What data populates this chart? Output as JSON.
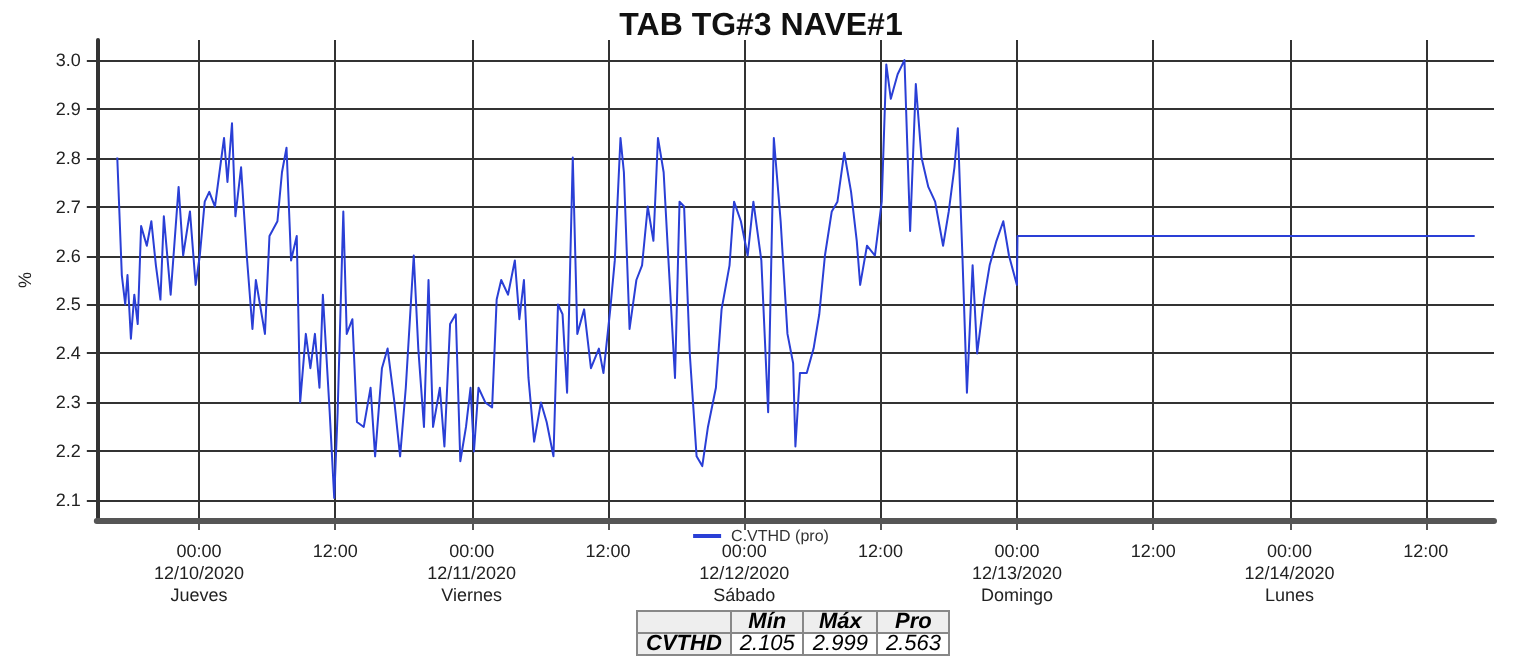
{
  "chart_data": {
    "type": "line",
    "title": "TAB TG#3 NAVE#1",
    "ylabel": "%",
    "x": [
      "2020-12-09T16:48",
      "2020-12-09T17:12",
      "2020-12-09T17:30",
      "2020-12-09T17:42",
      "2020-12-09T18:00",
      "2020-12-09T18:18",
      "2020-12-09T18:36",
      "2020-12-09T18:54",
      "2020-12-09T19:24",
      "2020-12-09T19:48",
      "2020-12-09T20:12",
      "2020-12-09T20:36",
      "2020-12-09T20:54",
      "2020-12-09T21:30",
      "2020-12-09T22:12",
      "2020-12-09T22:36",
      "2020-12-09T23:12",
      "2020-12-09T23:42",
      "2020-12-10T00:04",
      "2020-12-10T00:30",
      "2020-12-10T00:54",
      "2020-12-10T01:24",
      "2020-12-10T01:48",
      "2020-12-10T02:12",
      "2020-12-10T02:30",
      "2020-12-10T02:54",
      "2020-12-10T03:12",
      "2020-12-10T03:42",
      "2020-12-10T04:12",
      "2020-12-10T04:42",
      "2020-12-10T05:00",
      "2020-12-10T05:48",
      "2020-12-10T06:12",
      "2020-12-10T06:54",
      "2020-12-10T07:18",
      "2020-12-10T07:42",
      "2020-12-10T08:06",
      "2020-12-10T08:36",
      "2020-12-10T08:54",
      "2020-12-10T09:24",
      "2020-12-10T09:48",
      "2020-12-10T10:12",
      "2020-12-10T10:36",
      "2020-12-10T10:54",
      "2020-12-10T11:30",
      "2020-12-10T11:54",
      "2020-12-10T12:12",
      "2020-12-10T12:42",
      "2020-12-10T13:00",
      "2020-12-10T13:30",
      "2020-12-10T13:54",
      "2020-12-10T14:30",
      "2020-12-10T15:06",
      "2020-12-10T15:30",
      "2020-12-10T16:06",
      "2020-12-10T16:36",
      "2020-12-10T17:12",
      "2020-12-10T17:42",
      "2020-12-10T18:12",
      "2020-12-10T18:54",
      "2020-12-10T19:18",
      "2020-12-10T19:48",
      "2020-12-10T20:12",
      "2020-12-10T20:36",
      "2020-12-10T21:12",
      "2020-12-10T21:36",
      "2020-12-10T22:06",
      "2020-12-10T22:36",
      "2020-12-10T23:00",
      "2020-12-10T23:30",
      "2020-12-10T23:54",
      "2020-12-11T00:12",
      "2020-12-11T00:36",
      "2020-12-11T01:12",
      "2020-12-11T01:48",
      "2020-12-11T02:12",
      "2020-12-11T02:36",
      "2020-12-11T03:12",
      "2020-12-11T03:48",
      "2020-12-11T04:12",
      "2020-12-11T04:36",
      "2020-12-11T05:00",
      "2020-12-11T05:30",
      "2020-12-11T06:06",
      "2020-12-11T06:36",
      "2020-12-11T07:12",
      "2020-12-11T07:36",
      "2020-12-11T08:00",
      "2020-12-11T08:24",
      "2020-12-11T08:54",
      "2020-12-11T09:18",
      "2020-12-11T09:54",
      "2020-12-11T10:30",
      "2020-12-11T11:12",
      "2020-12-11T11:36",
      "2020-12-11T12:12",
      "2020-12-11T12:36",
      "2020-12-11T13:06",
      "2020-12-11T13:24",
      "2020-12-11T13:54",
      "2020-12-11T14:30",
      "2020-12-11T15:00",
      "2020-12-11T15:30",
      "2020-12-11T16:00",
      "2020-12-11T16:24",
      "2020-12-11T16:54",
      "2020-12-11T17:18",
      "2020-12-11T17:54",
      "2020-12-11T18:18",
      "2020-12-11T18:42",
      "2020-12-11T19:12",
      "2020-12-11T19:48",
      "2020-12-11T20:18",
      "2020-12-11T20:48",
      "2020-12-11T21:30",
      "2020-12-11T22:00",
      "2020-12-11T22:42",
      "2020-12-11T23:06",
      "2020-12-11T23:42",
      "2020-12-12T00:18",
      "2020-12-12T00:48",
      "2020-12-12T01:30",
      "2020-12-12T02:06",
      "2020-12-12T02:36",
      "2020-12-12T03:12",
      "2020-12-12T03:48",
      "2020-12-12T04:18",
      "2020-12-12T04:30",
      "2020-12-12T04:54",
      "2020-12-12T05:30",
      "2020-12-12T06:06",
      "2020-12-12T06:36",
      "2020-12-12T07:06",
      "2020-12-12T07:42",
      "2020-12-12T08:12",
      "2020-12-12T08:48",
      "2020-12-12T09:24",
      "2020-12-12T09:54",
      "2020-12-12T10:12",
      "2020-12-12T10:48",
      "2020-12-12T11:30",
      "2020-12-12T12:06",
      "2020-12-12T12:30",
      "2020-12-12T12:54",
      "2020-12-12T13:30",
      "2020-12-12T14:06",
      "2020-12-12T14:36",
      "2020-12-12T15:06",
      "2020-12-12T15:36",
      "2020-12-12T16:12",
      "2020-12-12T16:48",
      "2020-12-12T17:30",
      "2020-12-12T18:00",
      "2020-12-12T18:30",
      "2020-12-12T18:48",
      "2020-12-12T19:12",
      "2020-12-12T19:36",
      "2020-12-12T20:06",
      "2020-12-12T20:30",
      "2020-12-12T21:06",
      "2020-12-12T21:36",
      "2020-12-12T22:12",
      "2020-12-12T22:48",
      "2020-12-12T23:18",
      "2020-12-13T00:00",
      "2020-12-13T00:03",
      "2020-12-14T16:18"
    ],
    "series": [
      {
        "name": "C.VTHD (pro)",
        "color": "#2a3fd6",
        "values": [
          2.8,
          2.56,
          2.5,
          2.56,
          2.43,
          2.52,
          2.46,
          2.66,
          2.62,
          2.67,
          2.58,
          2.51,
          2.68,
          2.52,
          2.74,
          2.6,
          2.69,
          2.54,
          2.6,
          2.71,
          2.73,
          2.7,
          2.77,
          2.84,
          2.75,
          2.87,
          2.68,
          2.78,
          2.6,
          2.45,
          2.55,
          2.44,
          2.64,
          2.67,
          2.77,
          2.82,
          2.59,
          2.64,
          2.3,
          2.44,
          2.37,
          2.44,
          2.33,
          2.52,
          2.28,
          2.105,
          2.28,
          2.69,
          2.44,
          2.47,
          2.26,
          2.25,
          2.33,
          2.19,
          2.37,
          2.41,
          2.3,
          2.19,
          2.33,
          2.6,
          2.41,
          2.25,
          2.55,
          2.25,
          2.33,
          2.21,
          2.46,
          2.48,
          2.18,
          2.25,
          2.33,
          2.2,
          2.33,
          2.3,
          2.29,
          2.51,
          2.55,
          2.52,
          2.59,
          2.47,
          2.55,
          2.35,
          2.22,
          2.3,
          2.26,
          2.19,
          2.5,
          2.48,
          2.32,
          2.8,
          2.44,
          2.49,
          2.37,
          2.41,
          2.36,
          2.49,
          2.59,
          2.84,
          2.77,
          2.45,
          2.55,
          2.58,
          2.7,
          2.63,
          2.84,
          2.77,
          2.6,
          2.35,
          2.71,
          2.7,
          2.4,
          2.19,
          2.17,
          2.25,
          2.33,
          2.49,
          2.58,
          2.71,
          2.67,
          2.6,
          2.71,
          2.59,
          2.28,
          2.84,
          2.67,
          2.44,
          2.38,
          2.21,
          2.36,
          2.36,
          2.41,
          2.48,
          2.6,
          2.69,
          2.71,
          2.81,
          2.73,
          2.63,
          2.54,
          2.62,
          2.6,
          2.71,
          2.99,
          2.92,
          2.97,
          2.999,
          2.65,
          2.95,
          2.8,
          2.74,
          2.71,
          2.62,
          2.69,
          2.78,
          2.86,
          2.6,
          2.32,
          2.58,
          2.4,
          2.51,
          2.58,
          2.63,
          2.67,
          2.6,
          2.54,
          2.64,
          2.64
        ]
      }
    ],
    "xlim": [
      "2020-12-09T15:00",
      "2020-12-14T18:00"
    ],
    "xticks": [
      {
        "value": "2020-12-10T00:00",
        "label": "00:00\n12/10/2020\nJueves"
      },
      {
        "value": "2020-12-10T12:00",
        "label": "12:00"
      },
      {
        "value": "2020-12-11T00:00",
        "label": "00:00\n12/11/2020\nViernes"
      },
      {
        "value": "2020-12-11T12:00",
        "label": "12:00"
      },
      {
        "value": "2020-12-12T00:00",
        "label": "00:00\n12/12/2020\nSábado"
      },
      {
        "value": "2020-12-12T12:00",
        "label": "12:00"
      },
      {
        "value": "2020-12-13T00:00",
        "label": "00:00\n12/13/2020\nDomingo"
      },
      {
        "value": "2020-12-13T12:00",
        "label": "12:00"
      },
      {
        "value": "2020-12-14T00:00",
        "label": "00:00\n12/14/2020\nLunes"
      },
      {
        "value": "2020-12-14T12:00",
        "label": "12:00"
      }
    ],
    "ylim": [
      2.06,
      3.04
    ],
    "yticks": [
      2.1,
      2.2,
      2.3,
      2.4,
      2.5,
      2.6,
      2.7,
      2.8,
      2.9,
      {
        "value": 3.0,
        "label": "3.0"
      }
    ],
    "grid": true,
    "legend": "bottom",
    "marker": "none",
    "line_style": "solid",
    "annotations": [
      "Mín",
      "Máx",
      "Pro",
      "CVTHD",
      "2.105",
      "2.999",
      "2.563"
    ]
  }
}
